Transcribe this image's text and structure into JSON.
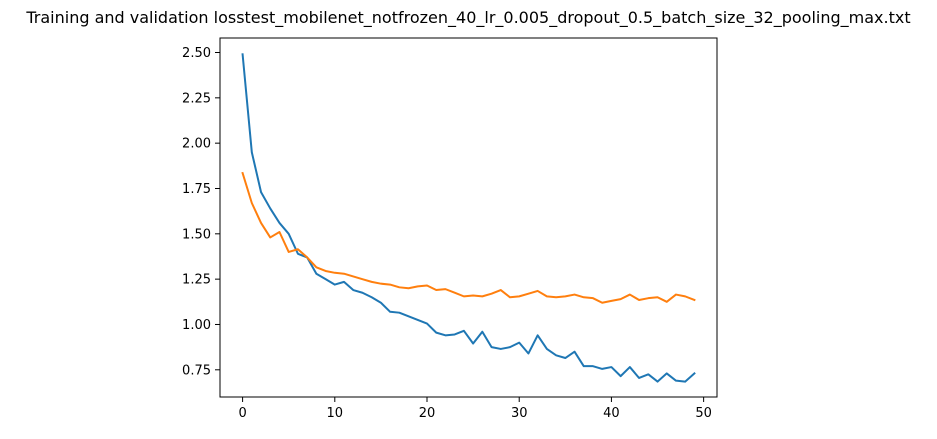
{
  "chart_data": {
    "type": "line",
    "title": "Training and validation losstest_mobilenet_notfrozen_40_lr_0.005_dropout_0.5_batch_size_32_pooling_max.txt",
    "xlabel": "",
    "ylabel": "",
    "xlim": [
      -2.45,
      51.45
    ],
    "ylim": [
      0.6,
      2.58
    ],
    "xticks": [
      0,
      10,
      20,
      30,
      40,
      50
    ],
    "yticks": [
      0.75,
      1.0,
      1.25,
      1.5,
      1.75,
      2.0,
      2.25,
      2.5
    ],
    "ytick_labels": [
      "0.75",
      "1.00",
      "1.25",
      "1.50",
      "1.75",
      "2.00",
      "2.25",
      "2.50"
    ],
    "grid": false,
    "x": [
      0,
      1,
      2,
      3,
      4,
      5,
      6,
      7,
      8,
      9,
      10,
      11,
      12,
      13,
      14,
      15,
      16,
      17,
      18,
      19,
      20,
      21,
      22,
      23,
      24,
      25,
      26,
      27,
      28,
      29,
      30,
      31,
      32,
      33,
      34,
      35,
      36,
      37,
      38,
      39,
      40,
      41,
      42,
      43,
      44,
      45,
      46,
      47,
      48,
      49
    ],
    "series": [
      {
        "color": "#1f77b4",
        "values": [
          2.49,
          1.95,
          1.73,
          1.64,
          1.56,
          1.5,
          1.39,
          1.37,
          1.28,
          1.25,
          1.22,
          1.235,
          1.19,
          1.175,
          1.15,
          1.12,
          1.07,
          1.065,
          1.045,
          1.025,
          1.005,
          0.955,
          0.94,
          0.945,
          0.965,
          0.895,
          0.96,
          0.875,
          0.865,
          0.875,
          0.9,
          0.84,
          0.94,
          0.865,
          0.83,
          0.815,
          0.85,
          0.77,
          0.77,
          0.755,
          0.765,
          0.715,
          0.765,
          0.705,
          0.725,
          0.685,
          0.73,
          0.69,
          0.685,
          0.73
        ]
      },
      {
        "color": "#ff7f0e",
        "values": [
          1.835,
          1.67,
          1.56,
          1.48,
          1.51,
          1.4,
          1.415,
          1.37,
          1.315,
          1.295,
          1.285,
          1.28,
          1.265,
          1.25,
          1.235,
          1.225,
          1.22,
          1.205,
          1.2,
          1.21,
          1.215,
          1.19,
          1.195,
          1.175,
          1.155,
          1.16,
          1.155,
          1.17,
          1.19,
          1.15,
          1.155,
          1.17,
          1.185,
          1.155,
          1.15,
          1.155,
          1.165,
          1.15,
          1.145,
          1.12,
          1.13,
          1.14,
          1.165,
          1.135,
          1.145,
          1.15,
          1.125,
          1.165,
          1.155,
          1.135
        ]
      }
    ]
  }
}
